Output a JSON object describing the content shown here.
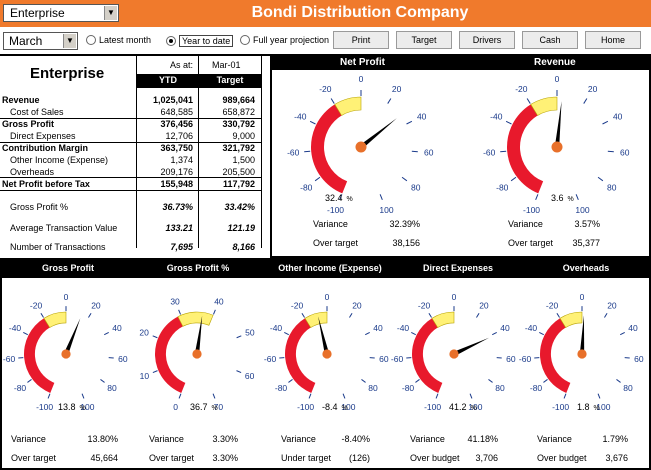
{
  "header": {
    "title": "Bondi Distribution Company",
    "entity_select": "Enterprise",
    "month_select": "March"
  },
  "period_options": [
    {
      "label": "Latest  month",
      "checked": false
    },
    {
      "label": "Year to date",
      "checked": true
    },
    {
      "label": "Full year projection",
      "checked": false
    }
  ],
  "buttons": [
    "Print",
    "Target",
    "Drivers",
    "Cash",
    "Home"
  ],
  "table": {
    "heading": "Enterprise",
    "as_at_label": "As at:",
    "as_at_date": "Mar-01",
    "col_ytd": "YTD",
    "col_target": "Target",
    "rows": [
      {
        "label": "Revenue",
        "ytd": "1,025,041",
        "target": "989,664",
        "style": "bold"
      },
      {
        "label": "Cost of Sales",
        "ytd": "648,585",
        "target": "658,872",
        "style": "sub"
      },
      {
        "label": "Gross Profit",
        "ytd": "376,456",
        "target": "330,792",
        "style": "bold"
      },
      {
        "label": "Direct Expenses",
        "ytd": "12,706",
        "target": "9,000",
        "style": "sub"
      },
      {
        "label": "Contribution Margin",
        "ytd": "363,750",
        "target": "321,792",
        "style": "bold"
      },
      {
        "label": "Other Income (Expense)",
        "ytd": "1,374",
        "target": "1,500",
        "style": "sub"
      },
      {
        "label": "Overheads",
        "ytd": "209,176",
        "target": "205,500",
        "style": "sub"
      },
      {
        "label": "Net Profit before Tax",
        "ytd": "155,948",
        "target": "117,792",
        "style": "bold"
      },
      {
        "label": "Gross Profit %",
        "ytd": "36.73%",
        "target": "33.42%",
        "style": "italic"
      },
      {
        "label": "Average Transaction Value",
        "ytd": "133.21",
        "target": "121.19",
        "style": "italic"
      },
      {
        "label": "Number of Transactions",
        "ytd": "7,695",
        "target": "8,166",
        "style": "italic"
      }
    ]
  },
  "gauges": [
    {
      "title": "Net Profit",
      "value": 32.4,
      "readout": "32.4",
      "unit": "%",
      "ticks": [
        "-100",
        "-80",
        "-60",
        "-40",
        "-20",
        "0",
        "20",
        "40",
        "60",
        "80",
        "100"
      ],
      "stat1_label": "Variance",
      "stat1_value": "32.39%",
      "stat2_label": "Over target",
      "stat2_value": "38,156"
    },
    {
      "title": "Revenue",
      "value": 3.6,
      "readout": "3.6",
      "unit": "%",
      "ticks": [
        "-100",
        "-80",
        "-60",
        "-40",
        "-20",
        "0",
        "20",
        "40",
        "60",
        "80",
        "100"
      ],
      "stat1_label": "Variance",
      "stat1_value": "3.57%",
      "stat2_label": "Over target",
      "stat2_value": "35,377"
    },
    {
      "title": "Gross Profit",
      "value": 13.8,
      "readout": "13.8",
      "unit": "%",
      "ticks": [
        "-100",
        "-80",
        "-60",
        "-40",
        "-20",
        "0",
        "20",
        "40",
        "60",
        "80",
        "100"
      ],
      "stat1_label": "Variance",
      "stat1_value": "13.80%",
      "stat2_label": "Over target",
      "stat2_value": "45,664"
    },
    {
      "title": "Gross Profit %",
      "value": 36.7,
      "readout": "36.7",
      "unit": "%",
      "ticks": [
        "0",
        "10",
        "20",
        "30",
        "40",
        "50",
        "60",
        "70"
      ],
      "stat1_label": "Variance",
      "stat1_value": "3.30%",
      "stat2_label": "Over target",
      "stat2_value": "3.30%"
    },
    {
      "title": "Other Income (Expense)",
      "value": -8.4,
      "readout": "-8.4",
      "unit": "%",
      "ticks": [
        "-100",
        "-80",
        "-60",
        "-40",
        "-20",
        "0",
        "20",
        "40",
        "60",
        "80",
        "100"
      ],
      "stat1_label": "Variance",
      "stat1_value": "-8.40%",
      "stat2_label": "Under target",
      "stat2_value": "(126)"
    },
    {
      "title": "Direct Expenses",
      "value": 41.2,
      "readout": "41.2",
      "unit": "%",
      "ticks": [
        "-100",
        "-80",
        "-60",
        "-40",
        "-20",
        "0",
        "20",
        "40",
        "60",
        "80",
        "100"
      ],
      "stat1_label": "Variance",
      "stat1_value": "41.18%",
      "stat2_label": "Over budget",
      "stat2_value": "3,706"
    },
    {
      "title": "Overheads",
      "value": 1.8,
      "readout": "1.8",
      "unit": "%",
      "ticks": [
        "-100",
        "-80",
        "-60",
        "-40",
        "-20",
        "0",
        "20",
        "40",
        "60",
        "80",
        "100"
      ],
      "stat1_label": "Variance",
      "stat1_value": "1.79%",
      "stat2_label": "Over budget",
      "stat2_value": "3,676"
    }
  ],
  "colors": {
    "brand": "#f07a2c",
    "red_zone": "#e8192c",
    "yellow_zone": "#fff176",
    "needle": "#000000",
    "hub": "#e8702a"
  }
}
